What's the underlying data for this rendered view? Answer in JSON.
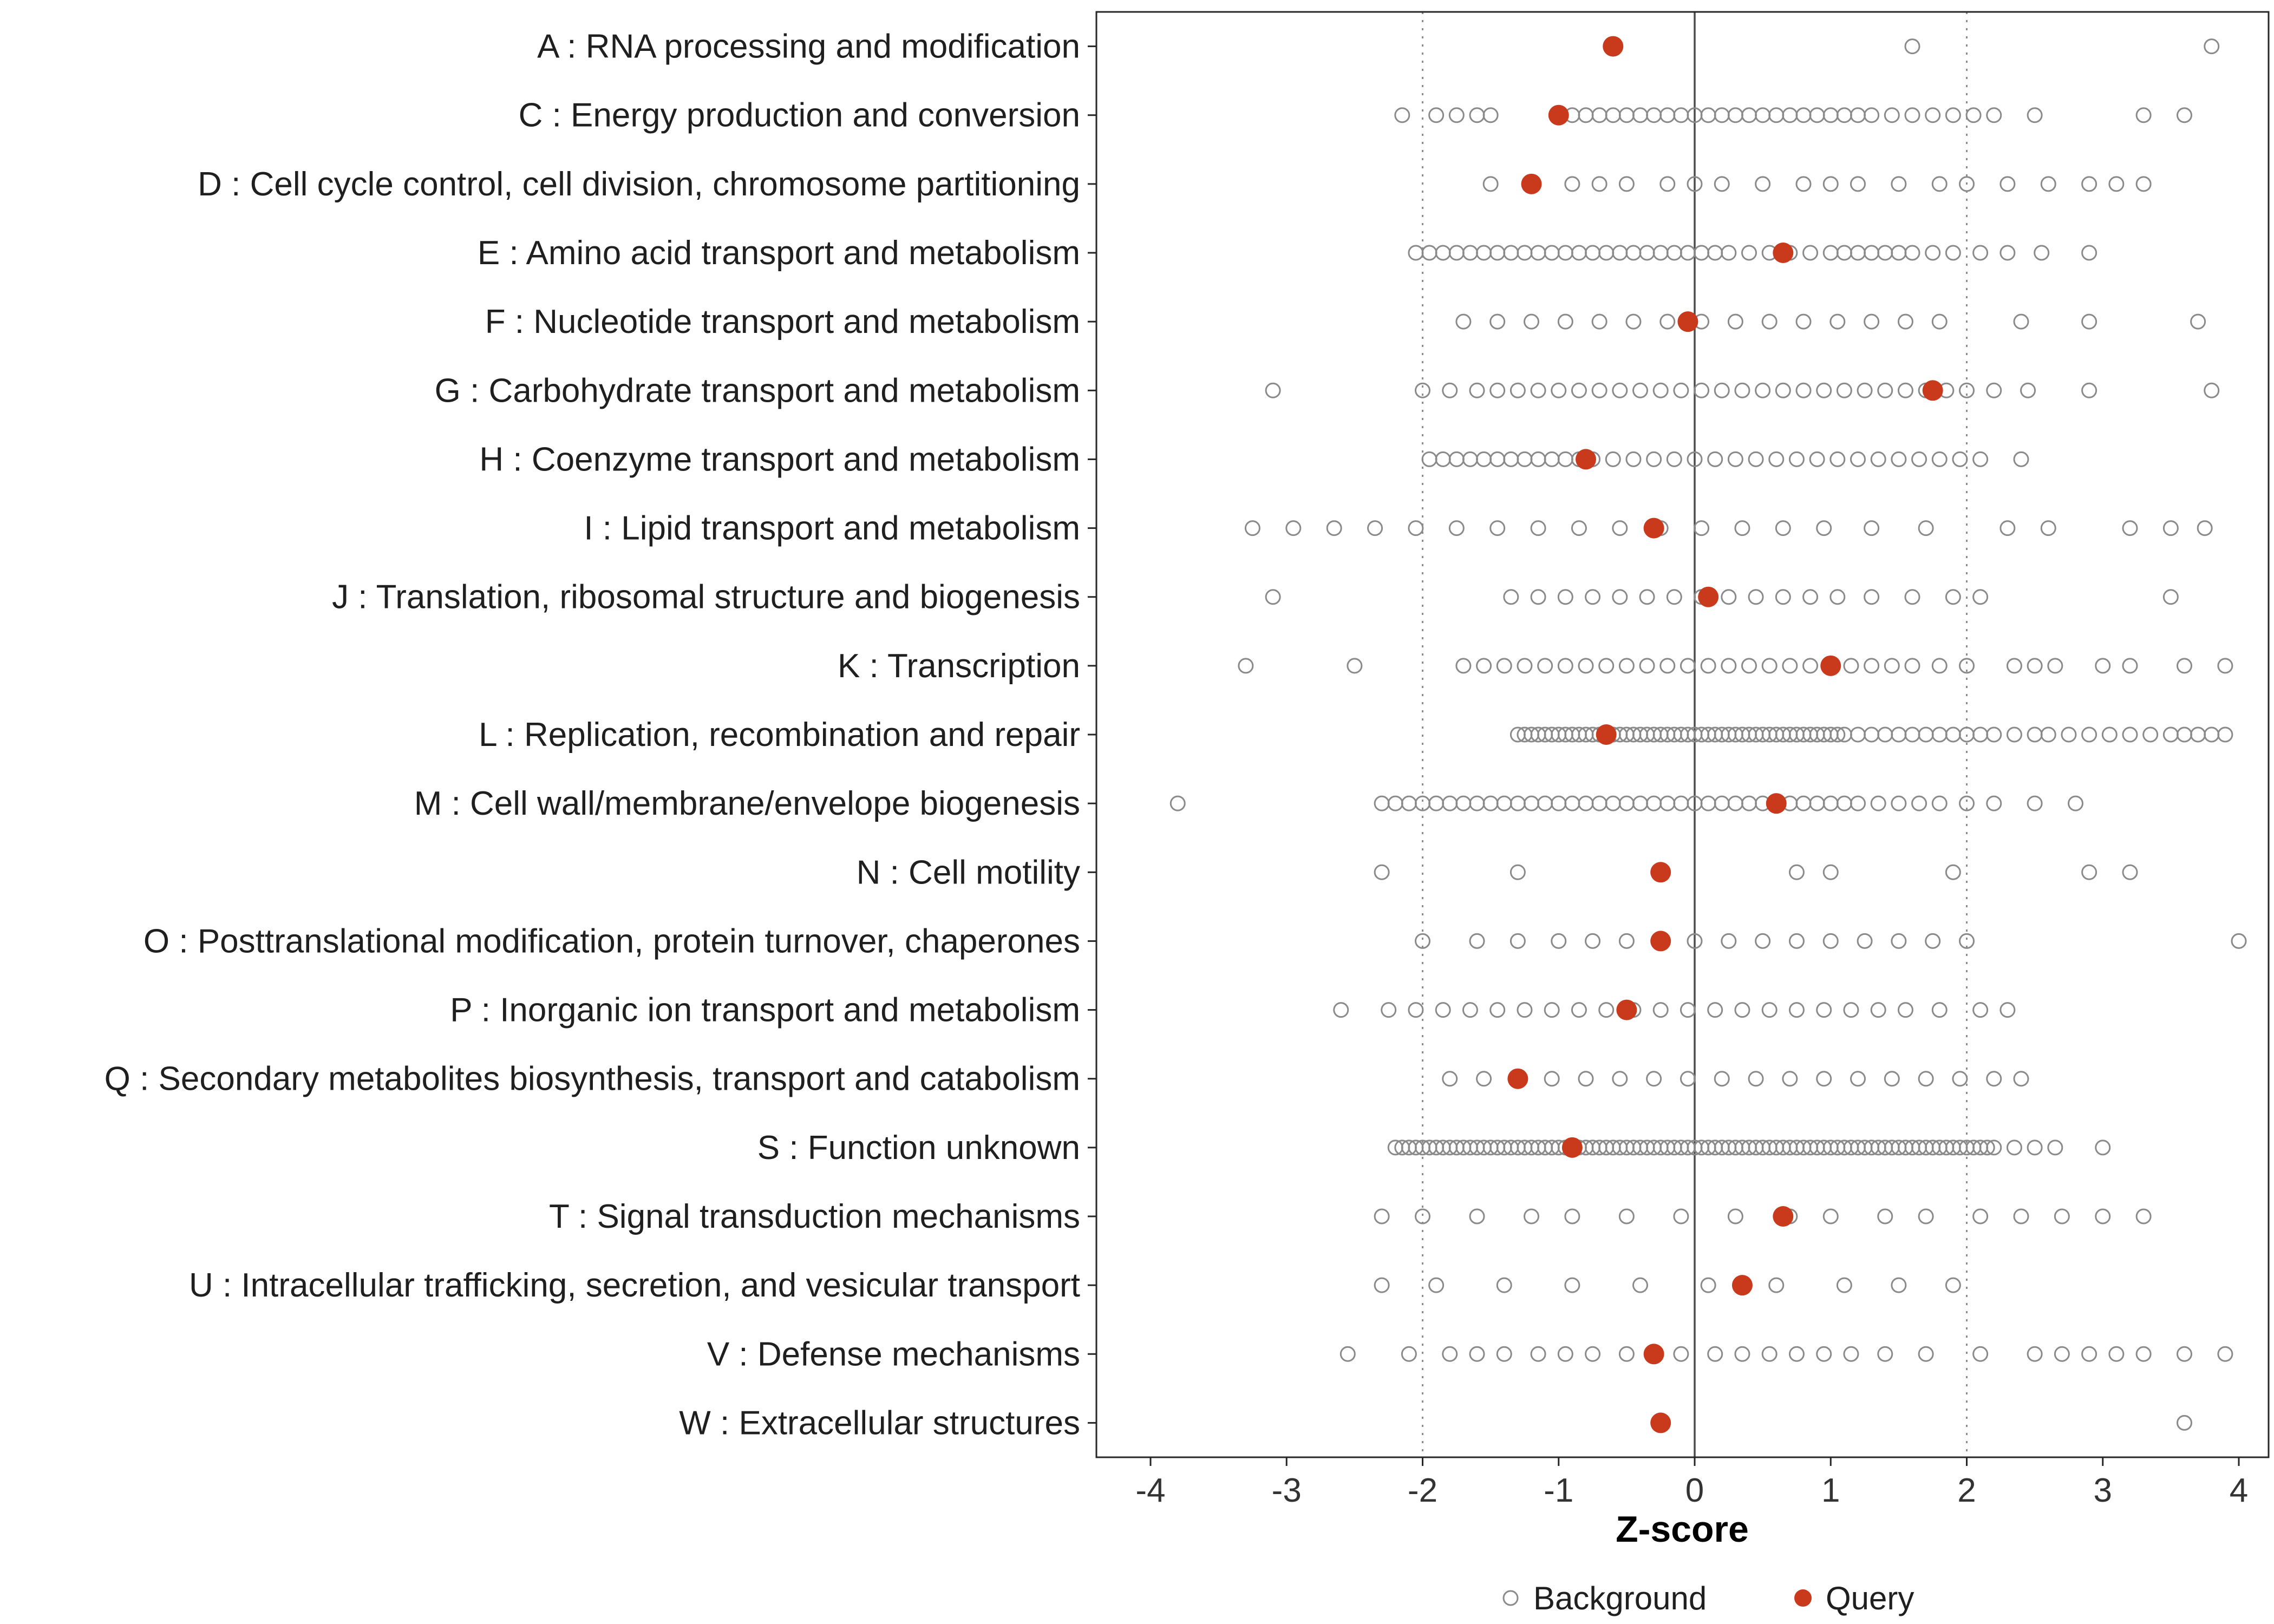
{
  "chart_data": {
    "type": "scatter",
    "title": "",
    "xlabel": "Z-score",
    "ylabel": "",
    "xlim": [
      -4.45,
      4.25
    ],
    "x_ticks": [
      -4,
      -3,
      -2,
      -1,
      0,
      1,
      2,
      3,
      4
    ],
    "grid": "off",
    "reference_lines": {
      "solid": [
        0
      ],
      "dotted": [
        -2,
        2
      ]
    },
    "colors": {
      "background_stroke": "#8a8a8a",
      "query_fill": "#c9391c",
      "panel_border": "#262626",
      "zero_line": "#4d4d4d",
      "ref_line": "#8c8c8c",
      "text": "#1f1f1f"
    },
    "legend": {
      "position": "bottom",
      "items": [
        {
          "label": "Background",
          "marker": "open-circle",
          "color": "#8a8a8a"
        },
        {
          "label": "Query",
          "marker": "filled-circle",
          "color": "#c9391c"
        }
      ]
    },
    "categories": [
      {
        "label": "A : RNA processing and modification",
        "query": -0.6,
        "background": [
          1.6,
          3.8
        ]
      },
      {
        "label": "C : Energy production and conversion",
        "query": -1.0,
        "background": [
          -2.15,
          -1.9,
          -1.75,
          -1.6,
          -1.5,
          -1.0,
          -0.9,
          -0.8,
          -0.7,
          -0.6,
          -0.5,
          -0.4,
          -0.3,
          -0.2,
          -0.1,
          0.0,
          0.1,
          0.2,
          0.3,
          0.4,
          0.5,
          0.6,
          0.7,
          0.8,
          0.9,
          1.0,
          1.1,
          1.2,
          1.3,
          1.45,
          1.6,
          1.75,
          1.9,
          2.05,
          2.2,
          2.5,
          3.3,
          3.6
        ]
      },
      {
        "label": "D : Cell cycle control, cell division, chromosome partitioning",
        "query": -1.2,
        "background": [
          -1.5,
          -1.2,
          -0.9,
          -0.7,
          -0.5,
          -0.2,
          0.0,
          0.2,
          0.5,
          0.8,
          1.0,
          1.2,
          1.5,
          1.8,
          2.0,
          2.3,
          2.6,
          2.9,
          3.1,
          3.3
        ]
      },
      {
        "label": "E : Amino acid transport and metabolism",
        "query": 0.65,
        "background": [
          -2.05,
          -1.95,
          -1.85,
          -1.75,
          -1.65,
          -1.55,
          -1.45,
          -1.35,
          -1.25,
          -1.15,
          -1.05,
          -0.95,
          -0.85,
          -0.75,
          -0.65,
          -0.55,
          -0.45,
          -0.35,
          -0.25,
          -0.15,
          -0.05,
          0.05,
          0.15,
          0.25,
          0.4,
          0.55,
          0.7,
          0.85,
          1.0,
          1.1,
          1.2,
          1.3,
          1.4,
          1.5,
          1.6,
          1.75,
          1.9,
          2.1,
          2.3,
          2.55,
          2.9
        ]
      },
      {
        "label": "F : Nucleotide transport and metabolism",
        "query": -0.05,
        "background": [
          -1.7,
          -1.45,
          -1.2,
          -0.95,
          -0.7,
          -0.45,
          -0.2,
          0.05,
          0.3,
          0.55,
          0.8,
          1.05,
          1.3,
          1.55,
          1.8,
          2.4,
          2.9,
          3.7
        ]
      },
      {
        "label": "G : Carbohydrate transport and metabolism",
        "query": 1.75,
        "background": [
          -3.1,
          -2.0,
          -1.8,
          -1.6,
          -1.45,
          -1.3,
          -1.15,
          -1.0,
          -0.85,
          -0.7,
          -0.55,
          -0.4,
          -0.25,
          -0.1,
          0.05,
          0.2,
          0.35,
          0.5,
          0.65,
          0.8,
          0.95,
          1.1,
          1.25,
          1.4,
          1.55,
          1.7,
          1.85,
          2.0,
          2.2,
          2.45,
          2.9,
          3.8
        ]
      },
      {
        "label": "H : Coenzyme transport and metabolism",
        "query": -0.8,
        "background": [
          -1.95,
          -1.85,
          -1.75,
          -1.65,
          -1.55,
          -1.45,
          -1.35,
          -1.25,
          -1.15,
          -1.05,
          -0.95,
          -0.85,
          -0.75,
          -0.6,
          -0.45,
          -0.3,
          -0.15,
          0.0,
          0.15,
          0.3,
          0.45,
          0.6,
          0.75,
          0.9,
          1.05,
          1.2,
          1.35,
          1.5,
          1.65,
          1.8,
          1.95,
          2.1,
          2.4
        ]
      },
      {
        "label": "I : Lipid transport and metabolism",
        "query": -0.3,
        "background": [
          -3.25,
          -2.95,
          -2.65,
          -2.35,
          -2.05,
          -1.75,
          -1.45,
          -1.15,
          -0.85,
          -0.55,
          -0.25,
          0.05,
          0.35,
          0.65,
          0.95,
          1.3,
          1.7,
          2.3,
          2.6,
          3.2,
          3.5,
          3.75
        ]
      },
      {
        "label": "J : Translation, ribosomal structure and biogenesis",
        "query": 0.1,
        "background": [
          -3.1,
          -1.35,
          -1.15,
          -0.95,
          -0.75,
          -0.55,
          -0.35,
          -0.15,
          0.05,
          0.25,
          0.45,
          0.65,
          0.85,
          1.05,
          1.3,
          1.6,
          1.9,
          2.1,
          3.5
        ]
      },
      {
        "label": "K : Transcription",
        "query": 1.0,
        "background": [
          -3.3,
          -2.5,
          -1.7,
          -1.55,
          -1.4,
          -1.25,
          -1.1,
          -0.95,
          -0.8,
          -0.65,
          -0.5,
          -0.35,
          -0.2,
          -0.05,
          0.1,
          0.25,
          0.4,
          0.55,
          0.7,
          0.85,
          1.0,
          1.15,
          1.3,
          1.45,
          1.6,
          1.8,
          2.0,
          2.35,
          2.5,
          2.65,
          3.0,
          3.2,
          3.6,
          3.9
        ]
      },
      {
        "label": "L : Replication, recombination and repair",
        "query": -0.65,
        "background": [
          -1.3,
          -1.25,
          -1.2,
          -1.15,
          -1.1,
          -1.05,
          -1.0,
          -0.95,
          -0.9,
          -0.85,
          -0.8,
          -0.75,
          -0.7,
          -0.65,
          -0.6,
          -0.55,
          -0.5,
          -0.45,
          -0.4,
          -0.35,
          -0.3,
          -0.25,
          -0.2,
          -0.15,
          -0.1,
          -0.05,
          0.0,
          0.05,
          0.1,
          0.15,
          0.2,
          0.25,
          0.3,
          0.35,
          0.4,
          0.45,
          0.5,
          0.55,
          0.6,
          0.65,
          0.7,
          0.75,
          0.8,
          0.85,
          0.9,
          0.95,
          1.0,
          1.05,
          1.1,
          1.2,
          1.3,
          1.4,
          1.5,
          1.6,
          1.7,
          1.8,
          1.9,
          2.0,
          2.1,
          2.2,
          2.35,
          2.5,
          2.6,
          2.75,
          2.9,
          3.05,
          3.2,
          3.35,
          3.5,
          3.6,
          3.7,
          3.8,
          3.9
        ]
      },
      {
        "label": "M : Cell wall/membrane/envelope biogenesis",
        "query": 0.6,
        "background": [
          -3.8,
          -2.3,
          -2.2,
          -2.1,
          -2.0,
          -1.9,
          -1.8,
          -1.7,
          -1.6,
          -1.5,
          -1.4,
          -1.3,
          -1.2,
          -1.1,
          -1.0,
          -0.9,
          -0.8,
          -0.7,
          -0.6,
          -0.5,
          -0.4,
          -0.3,
          -0.2,
          -0.1,
          0.0,
          0.1,
          0.2,
          0.3,
          0.4,
          0.5,
          0.6,
          0.7,
          0.8,
          0.9,
          1.0,
          1.1,
          1.2,
          1.35,
          1.5,
          1.65,
          1.8,
          2.0,
          2.2,
          2.5,
          2.8
        ]
      },
      {
        "label": "N : Cell motility",
        "query": -0.25,
        "background": [
          -2.3,
          -1.3,
          0.75,
          1.0,
          1.9,
          2.9,
          3.2
        ]
      },
      {
        "label": "O : Posttranslational modification, protein turnover, chaperones",
        "query": -0.25,
        "background": [
          -2.0,
          -1.6,
          -1.3,
          -1.0,
          -0.75,
          -0.5,
          -0.25,
          0.0,
          0.25,
          0.5,
          0.75,
          1.0,
          1.25,
          1.5,
          1.75,
          2.0,
          4.0
        ]
      },
      {
        "label": "P : Inorganic ion transport and metabolism",
        "query": -0.5,
        "background": [
          -2.6,
          -2.25,
          -2.05,
          -1.85,
          -1.65,
          -1.45,
          -1.25,
          -1.05,
          -0.85,
          -0.65,
          -0.45,
          -0.25,
          -0.05,
          0.15,
          0.35,
          0.55,
          0.75,
          0.95,
          1.15,
          1.35,
          1.55,
          1.8,
          2.1,
          2.3
        ]
      },
      {
        "label": "Q : Secondary metabolites biosynthesis, transport and catabolism",
        "query": -1.3,
        "background": [
          -1.8,
          -1.55,
          -1.3,
          -1.05,
          -0.8,
          -0.55,
          -0.3,
          -0.05,
          0.2,
          0.45,
          0.7,
          0.95,
          1.2,
          1.45,
          1.7,
          1.95,
          2.2,
          2.4
        ]
      },
      {
        "label": "S : Function unknown",
        "query": -0.9,
        "background": [
          -2.2,
          -2.15,
          -2.1,
          -2.05,
          -2.0,
          -1.95,
          -1.9,
          -1.85,
          -1.8,
          -1.75,
          -1.7,
          -1.65,
          -1.6,
          -1.55,
          -1.5,
          -1.45,
          -1.4,
          -1.35,
          -1.3,
          -1.25,
          -1.2,
          -1.15,
          -1.1,
          -1.05,
          -1.0,
          -0.95,
          -0.9,
          -0.85,
          -0.8,
          -0.75,
          -0.7,
          -0.65,
          -0.6,
          -0.55,
          -0.5,
          -0.45,
          -0.4,
          -0.35,
          -0.3,
          -0.25,
          -0.2,
          -0.15,
          -0.1,
          -0.05,
          0.0,
          0.05,
          0.1,
          0.15,
          0.2,
          0.25,
          0.3,
          0.35,
          0.4,
          0.45,
          0.5,
          0.55,
          0.6,
          0.65,
          0.7,
          0.75,
          0.8,
          0.85,
          0.9,
          0.95,
          1.0,
          1.05,
          1.1,
          1.15,
          1.2,
          1.25,
          1.3,
          1.35,
          1.4,
          1.45,
          1.5,
          1.55,
          1.6,
          1.65,
          1.7,
          1.75,
          1.8,
          1.85,
          1.9,
          1.95,
          2.0,
          2.05,
          2.1,
          2.15,
          2.2,
          2.35,
          2.5,
          2.65,
          3.0
        ]
      },
      {
        "label": "T : Signal transduction mechanisms",
        "query": 0.65,
        "background": [
          -2.3,
          -2.0,
          -1.6,
          -1.2,
          -0.9,
          -0.5,
          -0.1,
          0.3,
          0.7,
          1.0,
          1.4,
          1.7,
          2.1,
          2.4,
          2.7,
          3.0,
          3.3
        ]
      },
      {
        "label": "U : Intracellular trafficking, secretion, and vesicular transport",
        "query": 0.35,
        "background": [
          -2.3,
          -1.9,
          -1.4,
          -0.9,
          -0.4,
          0.1,
          0.6,
          1.1,
          1.5,
          1.9
        ]
      },
      {
        "label": "V : Defense mechanisms",
        "query": -0.3,
        "background": [
          -2.55,
          -2.1,
          -1.8,
          -1.6,
          -1.4,
          -1.15,
          -0.95,
          -0.75,
          -0.5,
          -0.3,
          -0.1,
          0.15,
          0.35,
          0.55,
          0.75,
          0.95,
          1.15,
          1.4,
          1.7,
          2.1,
          2.5,
          2.7,
          2.9,
          3.1,
          3.3,
          3.6,
          3.9
        ]
      },
      {
        "label": "W : Extracellular structures",
        "query": -0.25,
        "background": [
          3.6
        ]
      }
    ]
  }
}
